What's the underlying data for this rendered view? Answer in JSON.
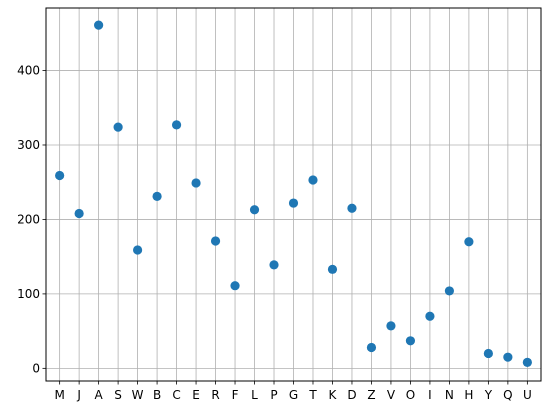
{
  "chart_data": {
    "type": "scatter",
    "title": "",
    "xlabel": "",
    "ylabel": "",
    "x": [
      "M",
      "J",
      "A",
      "S",
      "W",
      "B",
      "C",
      "E",
      "R",
      "F",
      "L",
      "P",
      "G",
      "T",
      "K",
      "D",
      "Z",
      "V",
      "O",
      "I",
      "N",
      "H",
      "Y",
      "Q",
      "U"
    ],
    "y": [
      259,
      208,
      461,
      324,
      159,
      231,
      327,
      249,
      171,
      111,
      213,
      139,
      222,
      253,
      133,
      215,
      28,
      57,
      37,
      70,
      104,
      170,
      20,
      15,
      8
    ],
    "ylim": [
      -17,
      484
    ],
    "yticks": [
      0,
      100,
      200,
      300,
      400
    ],
    "grid": true,
    "legend": "none",
    "colors": {
      "marker": "#1f77b4",
      "grid": "#b0b0b0",
      "axis": "#000000",
      "background": "#ffffff"
    }
  }
}
